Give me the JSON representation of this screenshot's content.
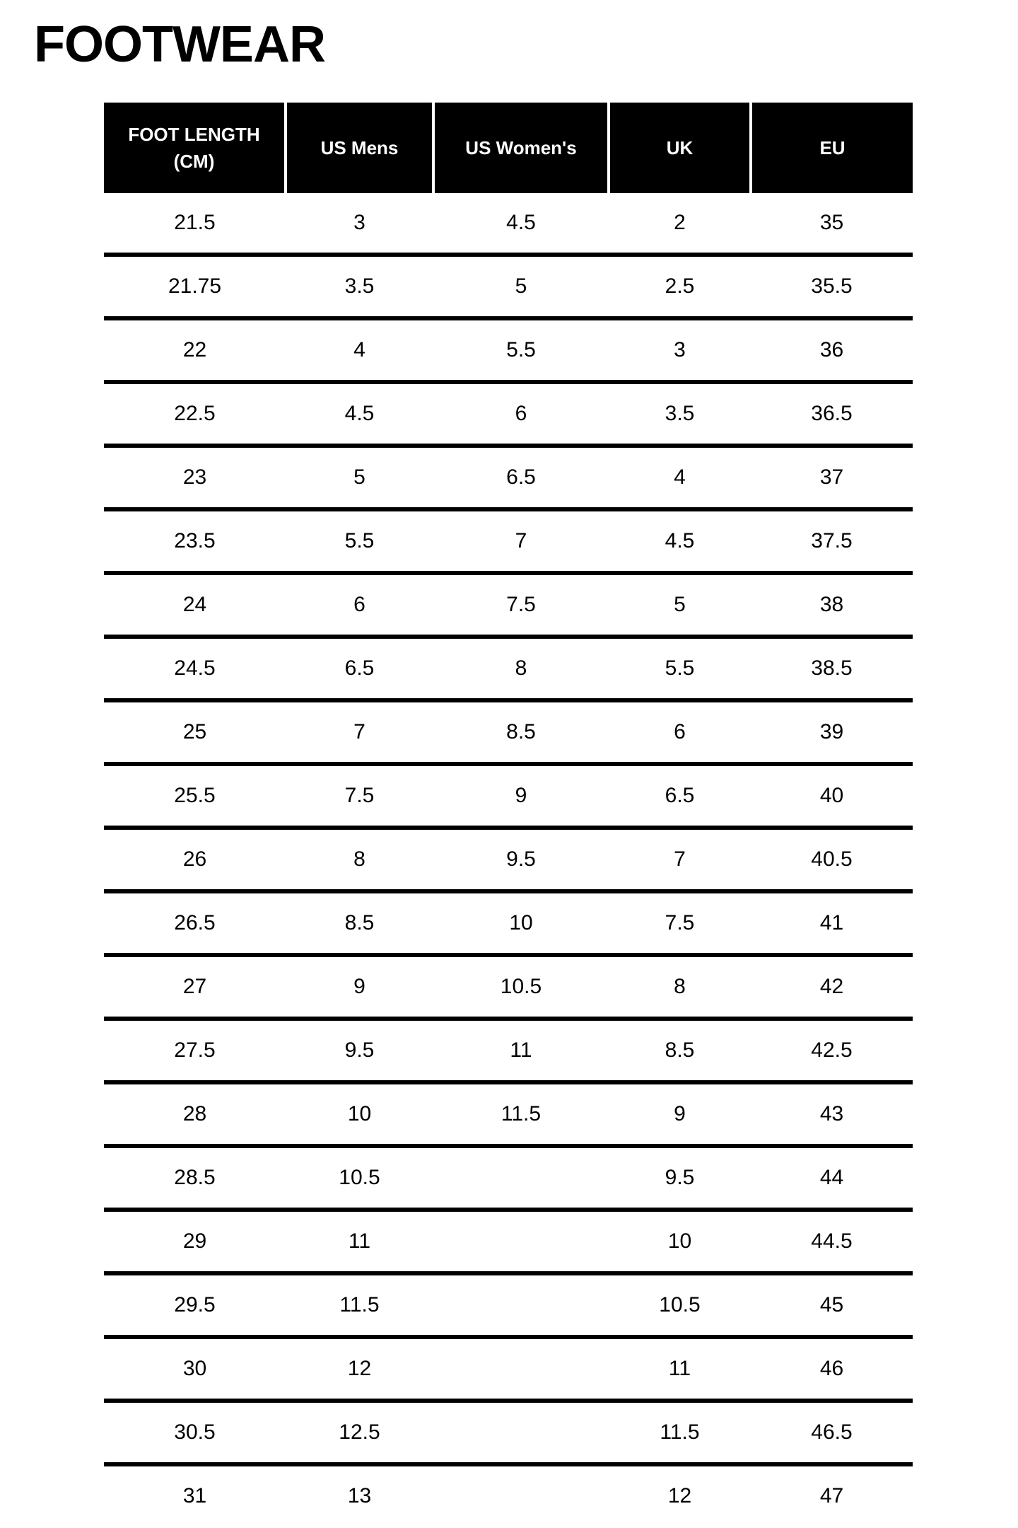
{
  "page": {
    "title": "FOOTWEAR"
  },
  "size_chart": {
    "columns": [
      "FOOT LENGTH (CM)",
      "US Mens",
      "US Women's",
      "UK",
      "EU"
    ],
    "rows": [
      [
        "21.5",
        "3",
        "4.5",
        "2",
        "35"
      ],
      [
        "21.75",
        "3.5",
        "5",
        "2.5",
        "35.5"
      ],
      [
        "22",
        "4",
        "5.5",
        "3",
        "36"
      ],
      [
        "22.5",
        "4.5",
        "6",
        "3.5",
        "36.5"
      ],
      [
        "23",
        "5",
        "6.5",
        "4",
        "37"
      ],
      [
        "23.5",
        "5.5",
        "7",
        "4.5",
        "37.5"
      ],
      [
        "24",
        "6",
        "7.5",
        "5",
        "38"
      ],
      [
        "24.5",
        "6.5",
        "8",
        "5.5",
        "38.5"
      ],
      [
        "25",
        "7",
        "8.5",
        "6",
        "39"
      ],
      [
        "25.5",
        "7.5",
        "9",
        "6.5",
        "40"
      ],
      [
        "26",
        "8",
        "9.5",
        "7",
        "40.5"
      ],
      [
        "26.5",
        "8.5",
        "10",
        "7.5",
        "41"
      ],
      [
        "27",
        "9",
        "10.5",
        "8",
        "42"
      ],
      [
        "27.5",
        "9.5",
        "11",
        "8.5",
        "42.5"
      ],
      [
        "28",
        "10",
        "11.5",
        "9",
        "43"
      ],
      [
        "28.5",
        "10.5",
        "",
        "9.5",
        "44"
      ],
      [
        "29",
        "11",
        "",
        "10",
        "44.5"
      ],
      [
        "29.5",
        "11.5",
        "",
        "10.5",
        "45"
      ],
      [
        "30",
        "12",
        "",
        "11",
        "46"
      ],
      [
        "30.5",
        "12.5",
        "",
        "11.5",
        "46.5"
      ],
      [
        "31",
        "13",
        "",
        "12",
        "47"
      ]
    ],
    "colors": {
      "background": "#ffffff",
      "header_bg": "#000000",
      "header_text": "#ffffff",
      "body_text": "#000000",
      "row_divider": "#000000",
      "header_cell_divider": "#ffffff"
    }
  },
  "chart_data": {
    "type": "table",
    "title": "FOOTWEAR",
    "columns": [
      "FOOT LENGTH (CM)",
      "US Mens",
      "US Women's",
      "UK",
      "EU"
    ],
    "rows": [
      [
        "21.5",
        "3",
        "4.5",
        "2",
        "35"
      ],
      [
        "21.75",
        "3.5",
        "5",
        "2.5",
        "35.5"
      ],
      [
        "22",
        "4",
        "5.5",
        "3",
        "36"
      ],
      [
        "22.5",
        "4.5",
        "6",
        "3.5",
        "36.5"
      ],
      [
        "23",
        "5",
        "6.5",
        "4",
        "37"
      ],
      [
        "23.5",
        "5.5",
        "7",
        "4.5",
        "37.5"
      ],
      [
        "24",
        "6",
        "7.5",
        "5",
        "38"
      ],
      [
        "24.5",
        "6.5",
        "8",
        "5.5",
        "38.5"
      ],
      [
        "25",
        "7",
        "8.5",
        "6",
        "39"
      ],
      [
        "25.5",
        "7.5",
        "9",
        "6.5",
        "40"
      ],
      [
        "26",
        "8",
        "9.5",
        "7",
        "40.5"
      ],
      [
        "26.5",
        "8.5",
        "10",
        "7.5",
        "41"
      ],
      [
        "27",
        "9",
        "10.5",
        "8",
        "42"
      ],
      [
        "27.5",
        "9.5",
        "11",
        "8.5",
        "42.5"
      ],
      [
        "28",
        "10",
        "11.5",
        "9",
        "43"
      ],
      [
        "28.5",
        "10.5",
        "",
        "9.5",
        "44"
      ],
      [
        "29",
        "11",
        "",
        "10",
        "44.5"
      ],
      [
        "29.5",
        "11.5",
        "",
        "10.5",
        "45"
      ],
      [
        "30",
        "12",
        "",
        "11",
        "46"
      ],
      [
        "30.5",
        "12.5",
        "",
        "11.5",
        "46.5"
      ],
      [
        "31",
        "13",
        "",
        "12",
        "47"
      ]
    ]
  }
}
